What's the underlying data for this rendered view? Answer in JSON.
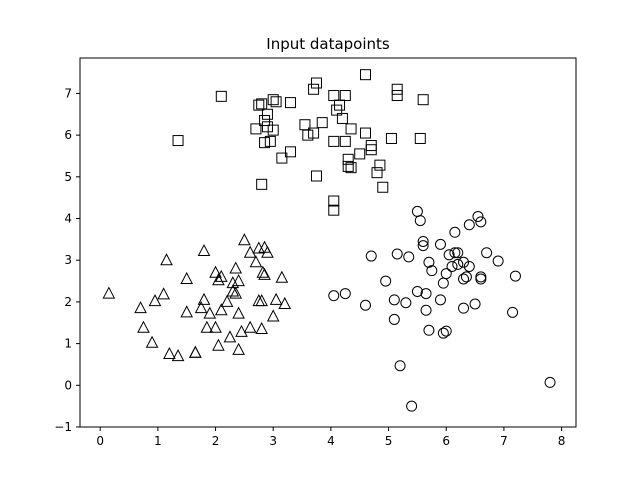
{
  "chart_data": {
    "type": "scatter",
    "title": "Input datapoints",
    "xlabel": "",
    "ylabel": "",
    "xlim": [
      -0.35,
      8.25
    ],
    "ylim": [
      -1.0,
      7.85
    ],
    "xticks": [
      0,
      1,
      2,
      3,
      4,
      5,
      6,
      7,
      8
    ],
    "yticks": [
      -1,
      0,
      1,
      2,
      3,
      4,
      5,
      6,
      7
    ],
    "grid": false,
    "legend": "none",
    "series": [
      {
        "marker": "square",
        "points": [
          [
            1.35,
            5.87
          ],
          [
            2.1,
            6.93
          ],
          [
            2.75,
            6.72
          ],
          [
            2.8,
            6.75
          ],
          [
            2.85,
            6.35
          ],
          [
            2.9,
            6.5
          ],
          [
            2.7,
            6.15
          ],
          [
            2.9,
            6.2
          ],
          [
            3.0,
            6.85
          ],
          [
            3.05,
            6.8
          ],
          [
            3.3,
            6.78
          ],
          [
            3.0,
            6.12
          ],
          [
            2.85,
            5.82
          ],
          [
            2.95,
            5.85
          ],
          [
            3.15,
            5.45
          ],
          [
            3.3,
            5.6
          ],
          [
            2.8,
            4.82
          ],
          [
            3.7,
            7.1
          ],
          [
            3.75,
            7.25
          ],
          [
            4.05,
            6.95
          ],
          [
            4.25,
            6.95
          ],
          [
            4.1,
            6.6
          ],
          [
            4.15,
            6.72
          ],
          [
            4.2,
            6.4
          ],
          [
            3.55,
            6.25
          ],
          [
            3.85,
            6.3
          ],
          [
            3.6,
            6.0
          ],
          [
            3.7,
            6.05
          ],
          [
            4.05,
            5.85
          ],
          [
            4.35,
            6.15
          ],
          [
            4.25,
            5.85
          ],
          [
            4.6,
            6.05
          ],
          [
            4.7,
            5.75
          ],
          [
            4.7,
            5.65
          ],
          [
            4.5,
            5.55
          ],
          [
            4.3,
            5.42
          ],
          [
            4.3,
            5.25
          ],
          [
            4.35,
            5.22
          ],
          [
            3.75,
            5.02
          ],
          [
            4.85,
            5.28
          ],
          [
            4.8,
            5.1
          ],
          [
            4.9,
            4.75
          ],
          [
            4.05,
            4.42
          ],
          [
            4.05,
            4.2
          ],
          [
            4.6,
            7.45
          ],
          [
            5.15,
            7.1
          ],
          [
            5.15,
            6.95
          ],
          [
            5.6,
            6.85
          ],
          [
            5.05,
            5.92
          ],
          [
            5.55,
            5.92
          ]
        ]
      },
      {
        "marker": "triangle",
        "points": [
          [
            0.15,
            2.2
          ],
          [
            0.7,
            1.85
          ],
          [
            0.75,
            1.38
          ],
          [
            0.9,
            1.02
          ],
          [
            0.95,
            2.02
          ],
          [
            1.1,
            2.18
          ],
          [
            1.15,
            3.0
          ],
          [
            1.2,
            0.75
          ],
          [
            1.35,
            0.7
          ],
          [
            1.5,
            2.55
          ],
          [
            1.5,
            1.75
          ],
          [
            1.65,
            0.78
          ],
          [
            1.65,
            0.78
          ],
          [
            1.75,
            1.85
          ],
          [
            1.8,
            3.22
          ],
          [
            1.8,
            2.05
          ],
          [
            1.85,
            1.38
          ],
          [
            1.9,
            1.72
          ],
          [
            2.0,
            2.7
          ],
          [
            2.0,
            1.38
          ],
          [
            2.05,
            2.52
          ],
          [
            2.05,
            0.95
          ],
          [
            2.1,
            2.6
          ],
          [
            2.1,
            1.8
          ],
          [
            2.2,
            2.0
          ],
          [
            2.25,
            1.15
          ],
          [
            2.3,
            2.25
          ],
          [
            2.3,
            2.45
          ],
          [
            2.35,
            2.2
          ],
          [
            2.4,
            2.5
          ],
          [
            2.35,
            2.8
          ],
          [
            2.4,
            1.72
          ],
          [
            2.4,
            0.85
          ],
          [
            2.45,
            1.28
          ],
          [
            2.5,
            3.48
          ],
          [
            2.6,
            1.38
          ],
          [
            2.6,
            3.18
          ],
          [
            2.7,
            2.95
          ],
          [
            2.75,
            3.28
          ],
          [
            2.75,
            2.02
          ],
          [
            2.8,
            1.35
          ],
          [
            2.8,
            2.02
          ],
          [
            2.82,
            2.7
          ],
          [
            2.85,
            2.65
          ],
          [
            2.9,
            3.18
          ],
          [
            2.85,
            3.3
          ],
          [
            3.0,
            1.65
          ],
          [
            3.05,
            2.05
          ],
          [
            3.15,
            2.58
          ],
          [
            3.2,
            1.95
          ]
        ]
      },
      {
        "marker": "circle",
        "points": [
          [
            4.05,
            2.15
          ],
          [
            4.25,
            2.2
          ],
          [
            4.6,
            1.92
          ],
          [
            4.7,
            3.1
          ],
          [
            4.95,
            2.5
          ],
          [
            5.1,
            1.58
          ],
          [
            5.1,
            2.05
          ],
          [
            5.15,
            3.15
          ],
          [
            5.2,
            0.47
          ],
          [
            5.3,
            1.98
          ],
          [
            5.35,
            3.08
          ],
          [
            5.4,
            -0.5
          ],
          [
            5.5,
            4.17
          ],
          [
            5.5,
            2.25
          ],
          [
            5.55,
            3.95
          ],
          [
            5.6,
            3.45
          ],
          [
            5.6,
            3.35
          ],
          [
            5.65,
            2.2
          ],
          [
            5.65,
            1.8
          ],
          [
            5.7,
            1.32
          ],
          [
            5.7,
            2.95
          ],
          [
            5.75,
            2.75
          ],
          [
            5.9,
            2.05
          ],
          [
            5.9,
            3.38
          ],
          [
            5.95,
            2.45
          ],
          [
            5.95,
            1.25
          ],
          [
            6.0,
            2.68
          ],
          [
            6.0,
            1.3
          ],
          [
            6.05,
            3.13
          ],
          [
            6.1,
            2.85
          ],
          [
            6.15,
            3.67
          ],
          [
            6.15,
            3.18
          ],
          [
            6.2,
            3.18
          ],
          [
            6.2,
            2.9
          ],
          [
            6.3,
            2.55
          ],
          [
            6.3,
            2.95
          ],
          [
            6.3,
            1.85
          ],
          [
            6.35,
            2.6
          ],
          [
            6.4,
            2.85
          ],
          [
            6.4,
            3.85
          ],
          [
            6.5,
            1.95
          ],
          [
            6.55,
            4.05
          ],
          [
            6.6,
            3.92
          ],
          [
            6.6,
            2.6
          ],
          [
            6.6,
            2.55
          ],
          [
            6.7,
            3.18
          ],
          [
            6.9,
            2.98
          ],
          [
            7.15,
            1.75
          ],
          [
            7.2,
            2.62
          ],
          [
            7.8,
            0.07
          ]
        ]
      }
    ]
  }
}
